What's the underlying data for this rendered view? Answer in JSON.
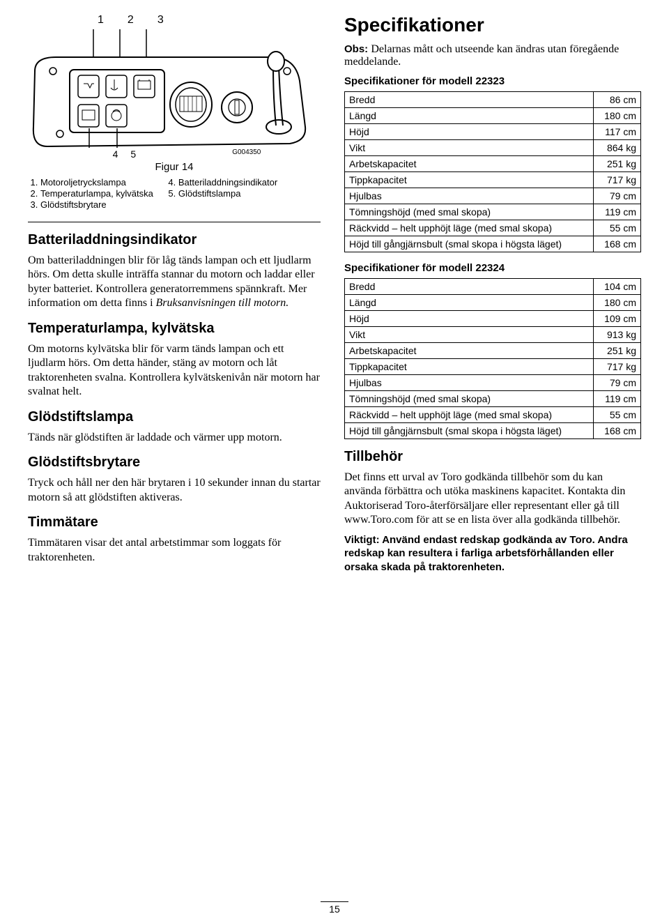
{
  "figure": {
    "topLabels": [
      "1",
      "2",
      "3"
    ],
    "bottomLabels": [
      "4",
      "5"
    ],
    "code": "G004350",
    "title": "Figur 14",
    "legendLeft": [
      "Motoroljetryckslampa",
      "Temperaturlampa, kylvätska",
      "Glödstiftsbrytare"
    ],
    "legendRight": [
      "Batteriladdningsindikator",
      "Glödstiftslampa"
    ]
  },
  "leftSections": [
    {
      "title": "Batteriladdningsindikator",
      "body": "Om batteriladdningen blir för låg tänds lampan och ett ljudlarm hörs. Om detta skulle inträffa stannar du motorn och laddar eller byter batteriet. Kontrollera generatorremmens spännkraft. Mer information om detta finns i ",
      "em": "Bruksanvisningen till motorn."
    },
    {
      "title": "Temperaturlampa, kylvätska",
      "body": "Om motorns kylvätska blir för varm tänds lampan och ett ljudlarm hörs. Om detta händer, stäng av motorn och låt traktorenheten svalna. Kontrollera kylvätskenivån när motorn har svalnat helt."
    },
    {
      "title": "Glödstiftslampa",
      "body": "Tänds när glödstiften är laddade och värmer upp motorn."
    },
    {
      "title": "Glödstiftsbrytare",
      "body": "Tryck och håll ner den här brytaren i 10 sekunder innan du startar motorn så att glödstiften aktiveras."
    },
    {
      "title": "Timmätare",
      "body": "Timmätaren visar det antal arbetstimmar som loggats för traktorenheten."
    }
  ],
  "spec": {
    "mainTitle": "Specifikationer",
    "obsLabel": "Obs:",
    "obsText": "Delarnas mått och utseende kan ändras utan föregående meddelande.",
    "table1Title": "Specifikationer för modell 22323",
    "table1": [
      [
        "Bredd",
        "86 cm"
      ],
      [
        "Längd",
        "180 cm"
      ],
      [
        "Höjd",
        "117 cm"
      ],
      [
        "Vikt",
        "864 kg"
      ],
      [
        "Arbetskapacitet",
        "251 kg"
      ],
      [
        "Tippkapacitet",
        "717 kg"
      ],
      [
        "Hjulbas",
        "79 cm"
      ],
      [
        "Tömningshöjd (med smal skopa)",
        "119 cm"
      ],
      [
        "Räckvidd – helt upphöjt läge (med smal skopa)",
        "55 cm"
      ],
      [
        "Höjd till gångjärnsbult (smal skopa i högsta läget)",
        "168 cm"
      ]
    ],
    "table2Title": "Specifikationer för modell 22324",
    "table2": [
      [
        "Bredd",
        "104 cm"
      ],
      [
        "Längd",
        "180 cm"
      ],
      [
        "Höjd",
        "109 cm"
      ],
      [
        "Vikt",
        "913 kg"
      ],
      [
        "Arbetskapacitet",
        "251 kg"
      ],
      [
        "Tippkapacitet",
        "717 kg"
      ],
      [
        "Hjulbas",
        "79 cm"
      ],
      [
        "Tömningshöjd (med smal skopa)",
        "119 cm"
      ],
      [
        "Räckvidd – helt upphöjt läge (med smal skopa)",
        "55 cm"
      ],
      [
        "Höjd till gångjärnsbult (smal skopa i högsta läget)",
        "168 cm"
      ]
    ],
    "accTitle": "Tillbehör",
    "accBody": "Det finns ett urval av Toro godkända tillbehör som du kan använda förbättra och utöka maskinens kapacitet. Kontakta din Auktoriserad Toro-återförsäljare eller representant eller gå till www.Toro.com för att se en lista över alla godkända tillbehör.",
    "importantLabel": "Viktigt:",
    "importantText": "Använd endast redskap godkända av Toro. Andra redskap kan resultera i farliga arbetsförhållanden eller orsaka skada på traktorenheten."
  },
  "pageNum": "15"
}
